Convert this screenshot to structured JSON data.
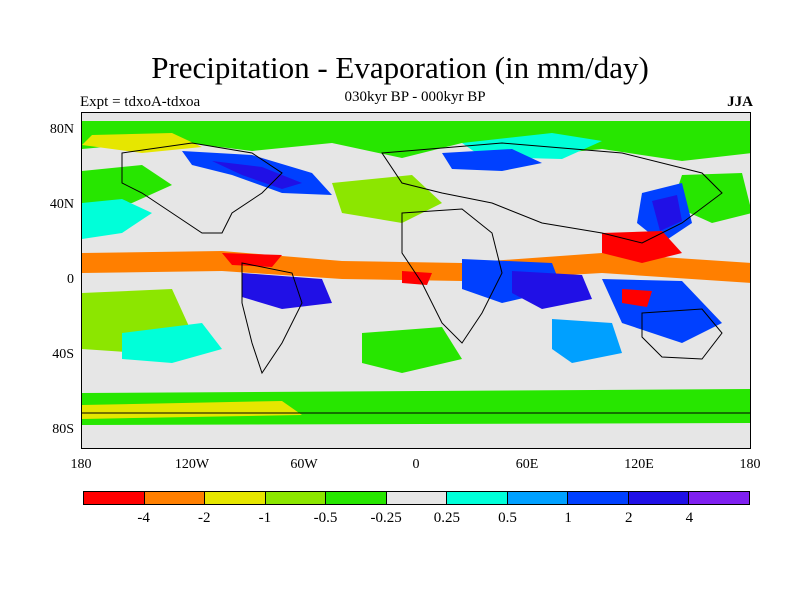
{
  "title": "Precipitation - Evaporation (in mm/day)",
  "subtitle": "030kyr BP - 000kyr BP",
  "left_label": "Expt = tdxoA-tdxoa",
  "right_label": "JJA",
  "y_ticks": [
    "80N",
    "40N",
    "0",
    "40S",
    "80S"
  ],
  "x_ticks": [
    "180",
    "120W",
    "60W",
    "0",
    "60E",
    "120E",
    "180"
  ],
  "colorbar": {
    "colors": [
      "#ff0000",
      "#ff7f00",
      "#e6e600",
      "#8ce600",
      "#27e600",
      "#e6e6e6",
      "#00ffd9",
      "#00a0ff",
      "#0040ff",
      "#2010e6",
      "#7f20f0"
    ],
    "labels": [
      "-4",
      "-2",
      "-1",
      "-0.5",
      "-0.25",
      "0.25",
      "0.5",
      "1",
      "2",
      "4"
    ]
  },
  "map": {
    "background_color": "#e6e6e6",
    "coastline_color": "#000000"
  }
}
